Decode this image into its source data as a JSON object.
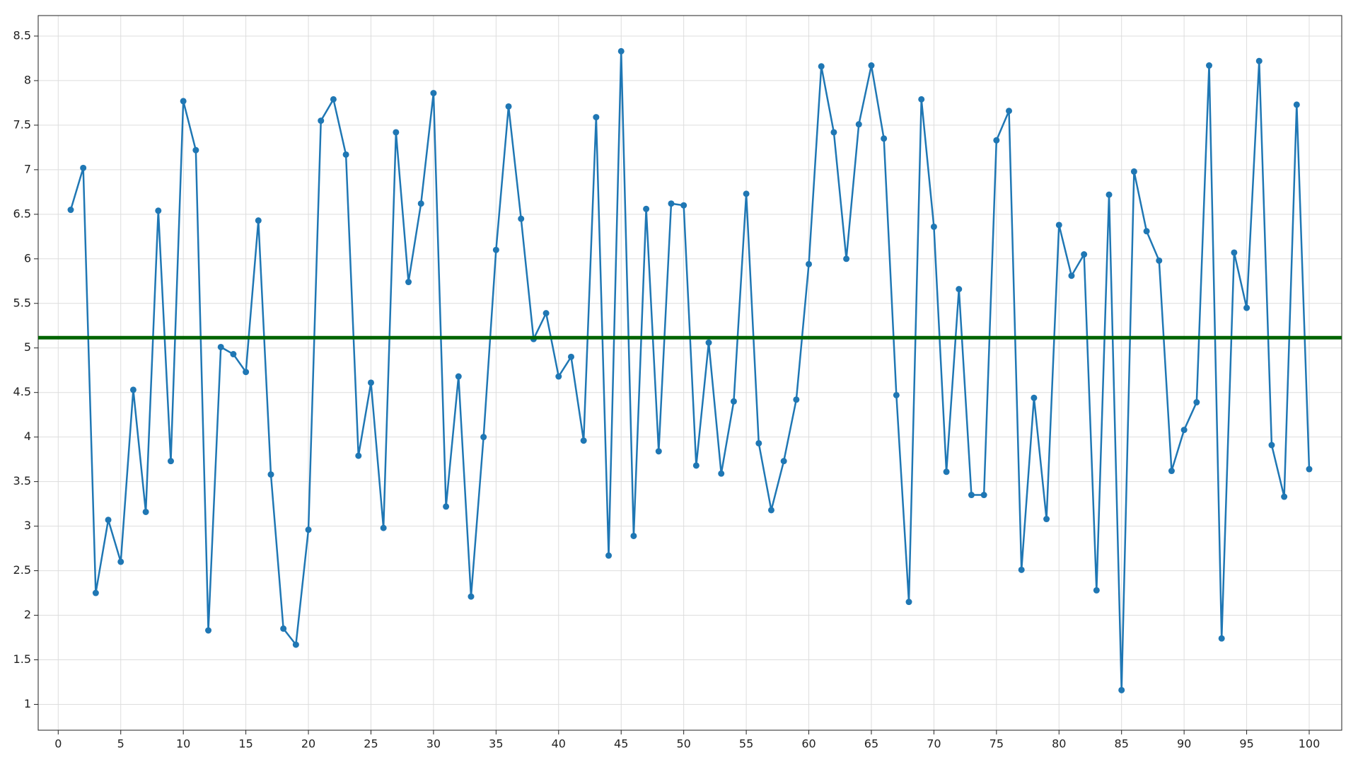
{
  "chart_data": {
    "type": "line",
    "x": [
      1,
      2,
      3,
      4,
      5,
      6,
      7,
      8,
      9,
      10,
      11,
      12,
      13,
      14,
      15,
      16,
      17,
      18,
      19,
      20,
      21,
      22,
      23,
      24,
      25,
      26,
      27,
      28,
      29,
      30,
      31,
      32,
      33,
      34,
      35,
      36,
      37,
      38,
      39,
      40,
      41,
      42,
      43,
      44,
      45,
      46,
      47,
      48,
      49,
      50,
      51,
      52,
      53,
      54,
      55,
      56,
      57,
      58,
      59,
      60,
      61,
      62,
      63,
      64,
      65,
      66,
      67,
      68,
      69,
      70,
      71,
      72,
      73,
      74,
      75,
      76,
      77,
      78,
      79,
      80,
      81,
      82,
      83,
      84,
      85,
      86,
      87,
      88,
      89,
      90,
      91,
      92,
      93,
      94,
      95,
      96,
      97,
      98,
      99,
      100
    ],
    "series": [
      {
        "color": "#1f77b4",
        "values": [
          6.55,
          7.02,
          2.25,
          3.07,
          2.6,
          4.53,
          3.16,
          6.54,
          3.73,
          7.77,
          7.22,
          1.83,
          5.01,
          4.93,
          4.73,
          6.43,
          3.58,
          1.85,
          1.67,
          2.96,
          7.55,
          7.79,
          7.17,
          3.79,
          4.61,
          2.98,
          7.42,
          5.74,
          6.62,
          7.86,
          3.22,
          4.68,
          2.21,
          4.0,
          6.1,
          7.71,
          6.45,
          5.1,
          5.39,
          4.68,
          4.9,
          3.96,
          7.59,
          2.67,
          8.33,
          2.89,
          6.56,
          3.84,
          6.62,
          6.6,
          3.68,
          5.06,
          3.59,
          4.4,
          6.73,
          3.93,
          3.18,
          3.73,
          4.42,
          5.94,
          8.16,
          7.42,
          6.0,
          7.51,
          8.17,
          7.35,
          4.47,
          2.15,
          7.79,
          6.36,
          3.61,
          5.66,
          3.35,
          3.35,
          7.33,
          7.66,
          2.51,
          4.44,
          3.08,
          6.38,
          5.81,
          6.05,
          2.28,
          6.72,
          1.16,
          6.98,
          6.31,
          5.98,
          3.62,
          4.08,
          4.39,
          8.17,
          1.74,
          6.07,
          5.45,
          8.22,
          3.91,
          3.33,
          7.73,
          3.64
        ]
      }
    ],
    "hline": {
      "value": 5.115,
      "color": "#006400"
    },
    "xlim": [
      -1.6,
      102.6
    ],
    "ylim": [
      0.71,
      8.73
    ],
    "xticks": [
      0,
      5,
      10,
      15,
      20,
      25,
      30,
      35,
      40,
      45,
      50,
      55,
      60,
      65,
      70,
      75,
      80,
      85,
      90,
      95,
      100
    ],
    "yticks": [
      1,
      1.5,
      2,
      2.5,
      3,
      3.5,
      4,
      4.5,
      5,
      5.5,
      6,
      6.5,
      7,
      7.5,
      8,
      8.5
    ],
    "grid": true
  }
}
